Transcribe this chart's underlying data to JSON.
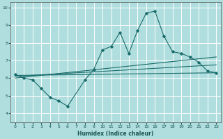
{
  "xlabel": "Humidex (Indice chaleur)",
  "background_color": "#b0dede",
  "grid_color": "#ffffff",
  "line_color": "#1a6b6b",
  "x_ticks": [
    0,
    1,
    2,
    3,
    4,
    5,
    6,
    7,
    8,
    9,
    10,
    11,
    12,
    13,
    14,
    15,
    16,
    17,
    18,
    19,
    20,
    21,
    22,
    23
  ],
  "ylim": [
    3.5,
    10.3
  ],
  "xlim": [
    -0.5,
    23.5
  ],
  "yticks": [
    4,
    5,
    6,
    7,
    8,
    9,
    10
  ],
  "series1_x": [
    0,
    1,
    2,
    3,
    4,
    5,
    6,
    8,
    9,
    10,
    11,
    12,
    13,
    14,
    15,
    16,
    17,
    18,
    19,
    20,
    21,
    22,
    23
  ],
  "series1_y": [
    6.2,
    6.0,
    5.9,
    5.4,
    4.9,
    4.7,
    4.4,
    5.9,
    6.5,
    7.6,
    7.8,
    8.6,
    7.4,
    8.7,
    9.7,
    9.8,
    8.4,
    7.5,
    7.4,
    7.2,
    6.9,
    6.4,
    6.3
  ],
  "series2_x": [
    0,
    23
  ],
  "series2_y": [
    6.15,
    6.3
  ],
  "series3_x": [
    0,
    23
  ],
  "series3_y": [
    6.1,
    6.75
  ],
  "series4_x": [
    0,
    23
  ],
  "series4_y": [
    6.0,
    7.2
  ]
}
